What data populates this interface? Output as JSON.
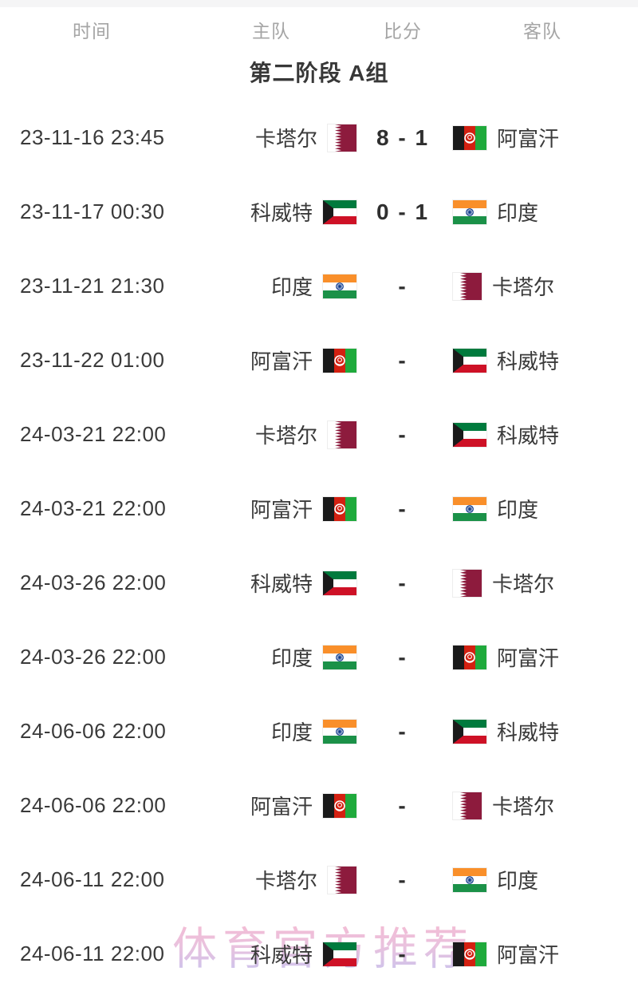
{
  "table_header": {
    "columns": [
      "时间",
      "主队",
      "比分",
      "客队"
    ]
  },
  "section_title": "第二阶段 A组",
  "watermark_text": "体育官方推荐",
  "colors": {
    "header_text": "#a5a5a5",
    "title_text": "#383838",
    "row_text": "#3a3a3a",
    "score_text": "#2f2f2f",
    "watermark_top": "#f6a9c6",
    "watermark_bottom": "#b9b6ec",
    "top_strip": "#f5f5f6"
  },
  "flags": {
    "qatar": {
      "label": "qatar-flag-icon",
      "maroon": "#8d1b3d",
      "white": "#ffffff"
    },
    "afghanistan": {
      "label": "afghanistan-flag-icon",
      "black": "#1a1a1a",
      "red": "#d32011",
      "green": "#1faa3c",
      "emblem": "#ffffff"
    },
    "kuwait": {
      "label": "kuwait-flag-icon",
      "green": "#007a3d",
      "white": "#ffffff",
      "red": "#ce1126",
      "black": "#1a1a1a"
    },
    "india": {
      "label": "india-flag-icon",
      "saffron": "#f98f2a",
      "white": "#ffffff",
      "green": "#1b9148",
      "navy": "#123c8c"
    }
  },
  "matches": [
    {
      "time": "23-11-16 23:45",
      "home": "卡塔尔",
      "home_flag": "qatar",
      "score": "8 - 1",
      "away": "阿富汗",
      "away_flag": "afghanistan"
    },
    {
      "time": "23-11-17 00:30",
      "home": "科威特",
      "home_flag": "kuwait",
      "score": "0 - 1",
      "away": "印度",
      "away_flag": "india"
    },
    {
      "time": "23-11-21 21:30",
      "home": "印度",
      "home_flag": "india",
      "score": "-",
      "away": "卡塔尔",
      "away_flag": "qatar"
    },
    {
      "time": "23-11-22 01:00",
      "home": "阿富汗",
      "home_flag": "afghanistan",
      "score": "-",
      "away": "科威特",
      "away_flag": "kuwait"
    },
    {
      "time": "24-03-21 22:00",
      "home": "卡塔尔",
      "home_flag": "qatar",
      "score": "-",
      "away": "科威特",
      "away_flag": "kuwait"
    },
    {
      "time": "24-03-21 22:00",
      "home": "阿富汗",
      "home_flag": "afghanistan",
      "score": "-",
      "away": "印度",
      "away_flag": "india"
    },
    {
      "time": "24-03-26 22:00",
      "home": "科威特",
      "home_flag": "kuwait",
      "score": "-",
      "away": "卡塔尔",
      "away_flag": "qatar"
    },
    {
      "time": "24-03-26 22:00",
      "home": "印度",
      "home_flag": "india",
      "score": "-",
      "away": "阿富汗",
      "away_flag": "afghanistan"
    },
    {
      "time": "24-06-06 22:00",
      "home": "印度",
      "home_flag": "india",
      "score": "-",
      "away": "科威特",
      "away_flag": "kuwait"
    },
    {
      "time": "24-06-06 22:00",
      "home": "阿富汗",
      "home_flag": "afghanistan",
      "score": "-",
      "away": "卡塔尔",
      "away_flag": "qatar"
    },
    {
      "time": "24-06-11 22:00",
      "home": "卡塔尔",
      "home_flag": "qatar",
      "score": "-",
      "away": "印度",
      "away_flag": "india"
    },
    {
      "time": "24-06-11 22:00",
      "home": "科威特",
      "home_flag": "kuwait",
      "score": "-",
      "away": "阿富汗",
      "away_flag": "afghanistan"
    }
  ]
}
